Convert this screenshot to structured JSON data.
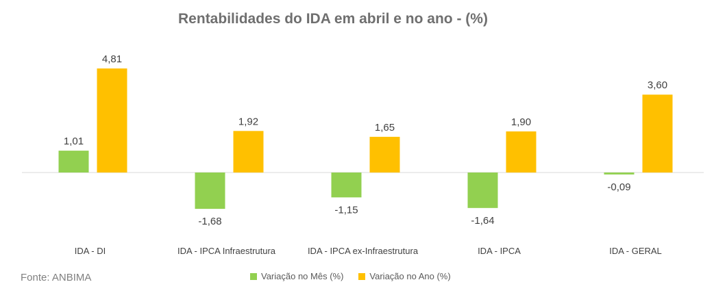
{
  "chart_data": {
    "type": "bar",
    "title": "Rentabilidades do IDA em abril e no ano - (%)",
    "categories": [
      "IDA - DI",
      "IDA - IPCA Infraestrutura",
      "IDA - IPCA ex-Infraestrutura",
      "IDA - IPCA",
      "IDA - GERAL"
    ],
    "series": [
      {
        "name": "Variação no Mês (%)",
        "values": [
          1.01,
          -1.68,
          -1.15,
          -1.64,
          -0.09
        ],
        "labels": [
          "1,01",
          "-1,68",
          "-1,15",
          "-1,64",
          "-0,09"
        ],
        "color": "#92d050"
      },
      {
        "name": "Variação no Ano (%)",
        "values": [
          4.81,
          1.92,
          1.65,
          1.9,
          3.6
        ],
        "labels": [
          "4,81",
          "1,92",
          "1,65",
          "1,90",
          "3,60"
        ],
        "color": "#ffc000"
      }
    ],
    "ylim": [
      -1.9,
      5.2
    ],
    "grid": false,
    "legend": "bottom"
  },
  "footer": {
    "source": "Fonte: ANBIMA"
  }
}
